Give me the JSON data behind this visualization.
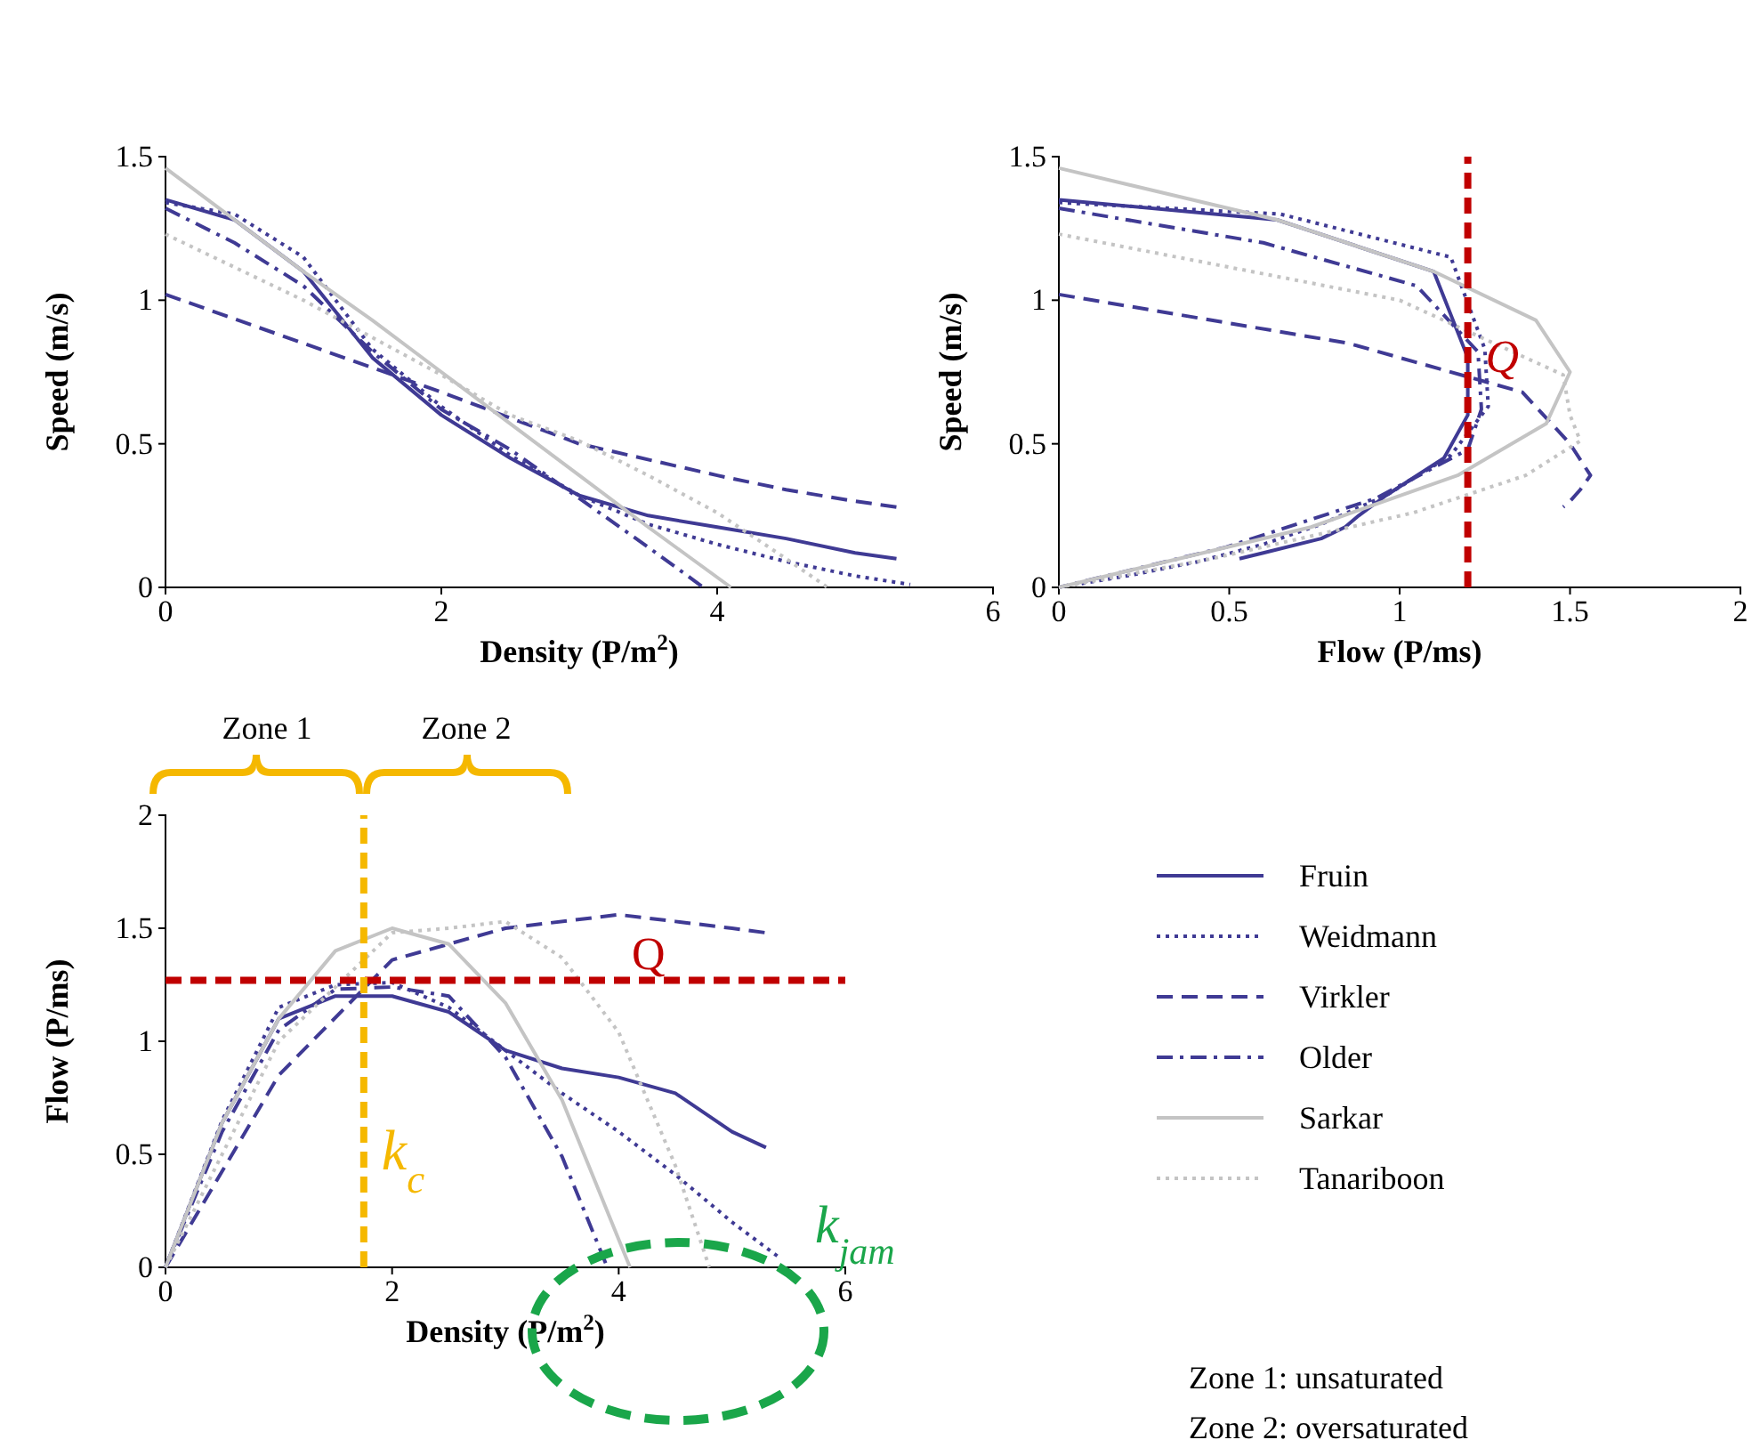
{
  "chart_data": [
    {
      "type": "line",
      "xlabel": "Density (P/m$^{2}$)",
      "ylabel": "Speed (m/s)",
      "xlim": [
        0,
        6
      ],
      "ylim": [
        0,
        1.5
      ],
      "xticks": [
        0,
        2,
        4,
        6
      ],
      "yticks": [
        0,
        0.5,
        1,
        1.5
      ],
      "legend": false,
      "series": [
        {
          "color": "#3f3a94",
          "line_style": "solid",
          "x": [
            0,
            0.5,
            1,
            1.5,
            2,
            2.5,
            3,
            3.5,
            4,
            4.5,
            5,
            5.3
          ],
          "values": [
            1.35,
            1.28,
            1.1,
            0.8,
            0.6,
            0.45,
            0.32,
            0.25,
            0.21,
            0.17,
            0.12,
            0.1
          ]
        },
        {
          "color": "#3f3a94",
          "line_style": "dotted",
          "x": [
            0,
            0.5,
            1,
            1.5,
            2,
            2.5,
            3,
            3.5,
            4,
            4.5,
            5,
            5.4
          ],
          "values": [
            1.34,
            1.3,
            1.15,
            0.83,
            0.63,
            0.46,
            0.32,
            0.22,
            0.15,
            0.09,
            0.04,
            0.01
          ]
        },
        {
          "color": "#3f3a94",
          "line_style": "dashed",
          "x": [
            0,
            1,
            2,
            3,
            4,
            4.5,
            5,
            5.3
          ],
          "values": [
            1.02,
            0.85,
            0.68,
            0.5,
            0.39,
            0.34,
            0.3,
            0.28
          ]
        },
        {
          "color": "#3f3a94",
          "line_style": "dashdot",
          "x": [
            0,
            0.5,
            1,
            1.5,
            2,
            2.5,
            3,
            3.5,
            3.9
          ],
          "values": [
            1.32,
            1.2,
            1.05,
            0.82,
            0.62,
            0.48,
            0.31,
            0.14,
            0
          ]
        },
        {
          "color": "#c4c4c4",
          "line_style": "solid",
          "x": [
            0,
            0.5,
            1,
            1.5,
            2,
            2.5,
            3,
            3.5,
            4.1
          ],
          "values": [
            1.46,
            1.28,
            1.1,
            0.93,
            0.75,
            0.57,
            0.39,
            0.21,
            0
          ]
        },
        {
          "color": "#c4c4c4",
          "line_style": "dotted",
          "x": [
            0,
            1,
            2,
            2.5,
            3,
            3.5,
            4,
            4.5,
            4.8
          ],
          "values": [
            1.23,
            1.0,
            0.74,
            0.6,
            0.51,
            0.39,
            0.26,
            0.1,
            0
          ]
        }
      ]
    },
    {
      "type": "line",
      "xlabel": "Flow (P/ms)",
      "ylabel": "Speed (m/s)",
      "xlim": [
        0,
        2
      ],
      "ylim": [
        0,
        1.5
      ],
      "xticks": [
        0,
        0.5,
        1,
        1.5,
        2
      ],
      "yticks": [
        0,
        0.5,
        1,
        1.5
      ],
      "legend": false,
      "ref_lines": [
        {
          "axis": "x",
          "value": 1.2,
          "label": "Q",
          "color": "#c00000",
          "line_style": "dashed"
        }
      ],
      "series": [
        {
          "color": "#3f3a94",
          "line_style": "solid",
          "x": [
            0,
            0.64,
            1.1,
            1.2,
            1.2,
            1.13,
            0.96,
            0.88,
            0.84,
            0.77,
            0.6,
            0.53
          ],
          "values": [
            1.35,
            1.28,
            1.1,
            0.8,
            0.6,
            0.45,
            0.32,
            0.25,
            0.21,
            0.17,
            0.12,
            0.1
          ]
        },
        {
          "color": "#3f3a94",
          "line_style": "dotted",
          "x": [
            0,
            0.65,
            1.15,
            1.25,
            1.26,
            1.15,
            0.96,
            0.77,
            0.6,
            0.41,
            0.2,
            0.05
          ],
          "values": [
            1.34,
            1.3,
            1.15,
            0.83,
            0.63,
            0.46,
            0.32,
            0.22,
            0.15,
            0.09,
            0.04,
            0.01
          ]
        },
        {
          "color": "#3f3a94",
          "line_style": "dashed",
          "x": [
            0,
            0.85,
            1.36,
            1.5,
            1.56,
            1.53,
            1.5,
            1.48
          ],
          "values": [
            1.02,
            0.85,
            0.68,
            0.5,
            0.39,
            0.34,
            0.3,
            0.28
          ]
        },
        {
          "color": "#3f3a94",
          "line_style": "dashdot",
          "x": [
            0,
            0.6,
            1.05,
            1.23,
            1.24,
            1.2,
            0.93,
            0.49,
            0
          ],
          "values": [
            1.32,
            1.2,
            1.05,
            0.82,
            0.62,
            0.48,
            0.31,
            0.14,
            0
          ]
        },
        {
          "color": "#c4c4c4",
          "line_style": "solid",
          "x": [
            0,
            0.64,
            1.1,
            1.4,
            1.5,
            1.43,
            1.17,
            0.74,
            0
          ],
          "values": [
            1.46,
            1.28,
            1.1,
            0.93,
            0.75,
            0.57,
            0.39,
            0.21,
            0
          ]
        },
        {
          "color": "#c4c4c4",
          "line_style": "dotted",
          "x": [
            0,
            1.0,
            1.48,
            1.5,
            1.53,
            1.37,
            1.04,
            0.45,
            0
          ],
          "values": [
            1.23,
            1.0,
            0.74,
            0.6,
            0.51,
            0.39,
            0.26,
            0.1,
            0
          ]
        }
      ]
    },
    {
      "type": "line",
      "xlabel": "Density (P/m$^{2}$)",
      "ylabel": "Flow (P/ms)",
      "xlim": [
        0,
        6
      ],
      "ylim": [
        0,
        2
      ],
      "xticks": [
        0,
        2,
        4,
        6
      ],
      "yticks": [
        0,
        0.5,
        1,
        1.5,
        2
      ],
      "legend": "right",
      "ref_lines": [
        {
          "axis": "y",
          "value": 1.27,
          "label": "Q",
          "color": "#c00000",
          "line_style": "dashed"
        },
        {
          "axis": "x",
          "value": 1.75,
          "label": "k$_{c}$",
          "color": "#f5b800",
          "line_style": "dashed"
        }
      ],
      "annotations": [
        "Zone 1",
        "Zone 2",
        "k$_{jam}$",
        "Zone 1: unsaturated",
        "Zone 2: oversaturated"
      ],
      "series": [
        {
          "name": "Fruin",
          "color": "#3f3a94",
          "line_style": "solid",
          "x": [
            0,
            0.5,
            1,
            1.5,
            2,
            2.5,
            3,
            3.5,
            4,
            4.5,
            5,
            5.3
          ],
          "values": [
            0,
            0.64,
            1.1,
            1.2,
            1.2,
            1.13,
            0.96,
            0.88,
            0.84,
            0.77,
            0.6,
            0.53
          ]
        },
        {
          "name": "Weidmann",
          "color": "#3f3a94",
          "line_style": "dotted",
          "x": [
            0,
            0.5,
            1,
            1.5,
            2,
            2.5,
            3,
            3.5,
            4,
            4.5,
            5,
            5.4
          ],
          "values": [
            0,
            0.65,
            1.15,
            1.25,
            1.26,
            1.15,
            0.96,
            0.77,
            0.6,
            0.41,
            0.2,
            0.05
          ]
        },
        {
          "name": "Virkler",
          "color": "#3f3a94",
          "line_style": "dashed",
          "x": [
            0,
            1,
            2,
            3,
            4,
            4.5,
            5,
            5.3
          ],
          "values": [
            0,
            0.85,
            1.36,
            1.5,
            1.56,
            1.53,
            1.5,
            1.48
          ]
        },
        {
          "name": "Older",
          "color": "#3f3a94",
          "line_style": "dashdot",
          "x": [
            0,
            0.5,
            1,
            1.5,
            2,
            2.5,
            3,
            3.5,
            3.9
          ],
          "values": [
            0,
            0.6,
            1.05,
            1.23,
            1.24,
            1.2,
            0.93,
            0.49,
            0
          ]
        },
        {
          "name": "Sarkar",
          "color": "#c4c4c4",
          "line_style": "solid",
          "x": [
            0,
            0.5,
            1,
            1.5,
            2,
            2.5,
            3,
            3.5,
            4.1
          ],
          "values": [
            0,
            0.64,
            1.1,
            1.4,
            1.5,
            1.43,
            1.17,
            0.74,
            0
          ]
        },
        {
          "name": "Tanariboon",
          "color": "#c4c4c4",
          "line_style": "dotted",
          "x": [
            0,
            1,
            2,
            2.5,
            3,
            3.5,
            4,
            4.5,
            4.8
          ],
          "values": [
            0,
            1.0,
            1.48,
            1.5,
            1.53,
            1.37,
            1.04,
            0.45,
            0
          ]
        }
      ]
    }
  ]
}
